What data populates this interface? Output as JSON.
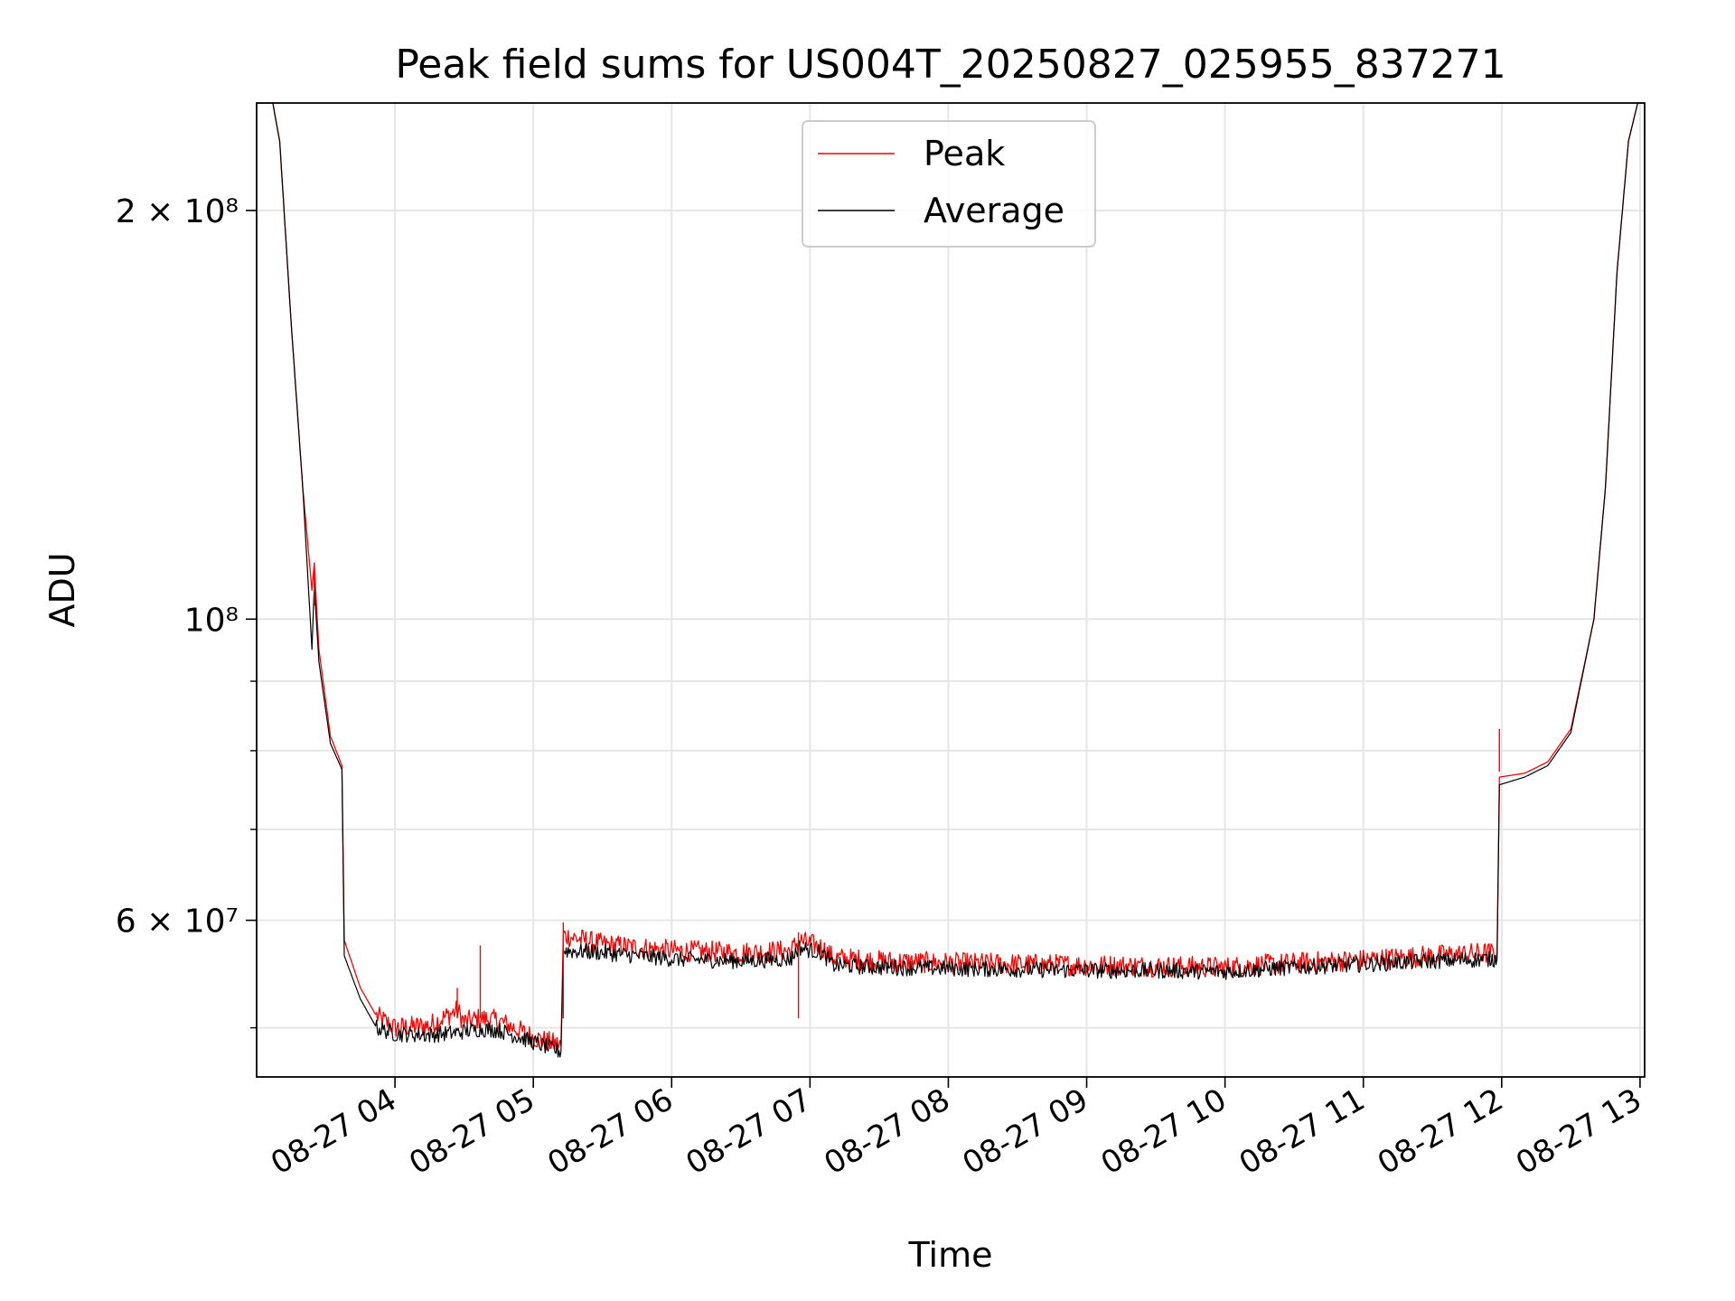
{
  "chart_data": {
    "type": "line",
    "title": "Peak field sums for US004T_20250827_025955_837271",
    "xlabel": "Time",
    "ylabel": "ADU",
    "x_tick_labels": [
      "08-27 04",
      "08-27 05",
      "08-27 06",
      "08-27 07",
      "08-27 08",
      "08-27 09",
      "08-27 10",
      "08-27 11",
      "08-27 12",
      "08-27 13"
    ],
    "y_tick_labels": [
      {
        "value": 60000000,
        "label": "6 × 10⁷"
      },
      {
        "value": 100000000,
        "label": "10⁸"
      },
      {
        "value": 200000000,
        "label": "2 × 10⁸"
      }
    ],
    "y_scale": "log",
    "ylim": [
      46000000,
      240000000
    ],
    "xlim": [
      "2025-08-27 03:00",
      "2025-08-27 13:02"
    ],
    "grid": true,
    "legend_position": "upper-center",
    "series": [
      {
        "name": "Peak",
        "color": "#ff0000",
        "points": [
          [
            "2025-08-27 03:00",
            240000000
          ],
          [
            "2025-08-27 03:07",
            240000000
          ],
          [
            "2025-08-27 03:10",
            225000000
          ],
          [
            "2025-08-27 03:15",
            165000000
          ],
          [
            "2025-08-27 03:20",
            125000000
          ],
          [
            "2025-08-27 03:24",
            105000000
          ],
          [
            "2025-08-27 03:25",
            110000000
          ],
          [
            "2025-08-27 03:27",
            95000000
          ],
          [
            "2025-08-27 03:32",
            82000000
          ],
          [
            "2025-08-27 03:37",
            78000000
          ],
          [
            "2025-08-27 03:38",
            58000000
          ],
          [
            "2025-08-27 03:45",
            53500000
          ],
          [
            "2025-08-27 03:52",
            51000000
          ],
          [
            "2025-08-27 04:00",
            50000000
          ],
          [
            "2025-08-27 04:15",
            50200000
          ],
          [
            "2025-08-27 04:27",
            51500000
          ],
          [
            "2025-08-27 04:30",
            50500000
          ],
          [
            "2025-08-27 04:37",
            50800000
          ],
          [
            "2025-08-27 04:45",
            50600000
          ],
          [
            "2025-08-27 05:00",
            49200000
          ],
          [
            "2025-08-27 05:12",
            48500000
          ],
          [
            "2025-08-27 05:13",
            58500000
          ],
          [
            "2025-08-27 05:30",
            57600000
          ],
          [
            "2025-08-27 06:00",
            57000000
          ],
          [
            "2025-08-27 06:30",
            56800000
          ],
          [
            "2025-08-27 06:52",
            57000000
          ],
          [
            "2025-08-27 06:55",
            58000000
          ],
          [
            "2025-08-27 07:05",
            57300000
          ],
          [
            "2025-08-27 07:10",
            56300000
          ],
          [
            "2025-08-27 07:30",
            56000000
          ],
          [
            "2025-08-27 08:00",
            55800000
          ],
          [
            "2025-08-27 08:30",
            55700000
          ],
          [
            "2025-08-27 09:00",
            55600000
          ],
          [
            "2025-08-27 09:30",
            55500000
          ],
          [
            "2025-08-27 10:00",
            55400000
          ],
          [
            "2025-08-27 10:30",
            55800000
          ],
          [
            "2025-08-27 11:00",
            56100000
          ],
          [
            "2025-08-27 11:30",
            56500000
          ],
          [
            "2025-08-27 11:58",
            56800000
          ],
          [
            "2025-08-27 11:59",
            76500000
          ],
          [
            "2025-08-27 12:10",
            77000000
          ],
          [
            "2025-08-27 12:20",
            78500000
          ],
          [
            "2025-08-27 12:30",
            83000000
          ],
          [
            "2025-08-27 12:40",
            100000000
          ],
          [
            "2025-08-27 12:45",
            125000000
          ],
          [
            "2025-08-27 12:50",
            180000000
          ],
          [
            "2025-08-27 12:55",
            225000000
          ],
          [
            "2025-08-27 12:59",
            240000000
          ],
          [
            "2025-08-27 13:02",
            240000000
          ]
        ]
      },
      {
        "name": "Average",
        "color": "#000000",
        "points": [
          [
            "2025-08-27 03:00",
            240000000
          ],
          [
            "2025-08-27 03:07",
            240000000
          ],
          [
            "2025-08-27 03:10",
            225000000
          ],
          [
            "2025-08-27 03:15",
            165000000
          ],
          [
            "2025-08-27 03:20",
            125000000
          ],
          [
            "2025-08-27 03:24",
            95000000
          ],
          [
            "2025-08-27 03:25",
            106000000
          ],
          [
            "2025-08-27 03:27",
            93000000
          ],
          [
            "2025-08-27 03:32",
            81000000
          ],
          [
            "2025-08-27 03:37",
            77500000
          ],
          [
            "2025-08-27 03:38",
            56500000
          ],
          [
            "2025-08-27 03:45",
            52500000
          ],
          [
            "2025-08-27 03:52",
            50000000
          ],
          [
            "2025-08-27 04:00",
            49500000
          ],
          [
            "2025-08-27 04:15",
            49400000
          ],
          [
            "2025-08-27 04:27",
            49600000
          ],
          [
            "2025-08-27 04:30",
            49700000
          ],
          [
            "2025-08-27 04:37",
            49900000
          ],
          [
            "2025-08-27 04:45",
            49800000
          ],
          [
            "2025-08-27 05:00",
            48800000
          ],
          [
            "2025-08-27 05:12",
            48000000
          ],
          [
            "2025-08-27 05:13",
            57000000
          ],
          [
            "2025-08-27 05:30",
            56800000
          ],
          [
            "2025-08-27 06:00",
            56200000
          ],
          [
            "2025-08-27 06:30",
            56000000
          ],
          [
            "2025-08-27 06:52",
            56200000
          ],
          [
            "2025-08-27 06:55",
            57300000
          ],
          [
            "2025-08-27 07:05",
            56800000
          ],
          [
            "2025-08-27 07:10",
            55600000
          ],
          [
            "2025-08-27 07:30",
            55400000
          ],
          [
            "2025-08-27 08:00",
            55300000
          ],
          [
            "2025-08-27 08:30",
            55200000
          ],
          [
            "2025-08-27 09:00",
            55100000
          ],
          [
            "2025-08-27 09:30",
            55100000
          ],
          [
            "2025-08-27 10:00",
            55000000
          ],
          [
            "2025-08-27 10:30",
            55400000
          ],
          [
            "2025-08-27 11:00",
            55700000
          ],
          [
            "2025-08-27 11:30",
            56000000
          ],
          [
            "2025-08-27 11:58",
            56200000
          ],
          [
            "2025-08-27 11:59",
            75500000
          ],
          [
            "2025-08-27 12:10",
            76500000
          ],
          [
            "2025-08-27 12:20",
            78000000
          ],
          [
            "2025-08-27 12:30",
            82500000
          ],
          [
            "2025-08-27 12:40",
            100000000
          ],
          [
            "2025-08-27 12:45",
            125000000
          ],
          [
            "2025-08-27 12:50",
            180000000
          ],
          [
            "2025-08-27 12:55",
            225000000
          ],
          [
            "2025-08-27 12:59",
            240000000
          ],
          [
            "2025-08-27 13:02",
            240000000
          ]
        ]
      }
    ]
  }
}
